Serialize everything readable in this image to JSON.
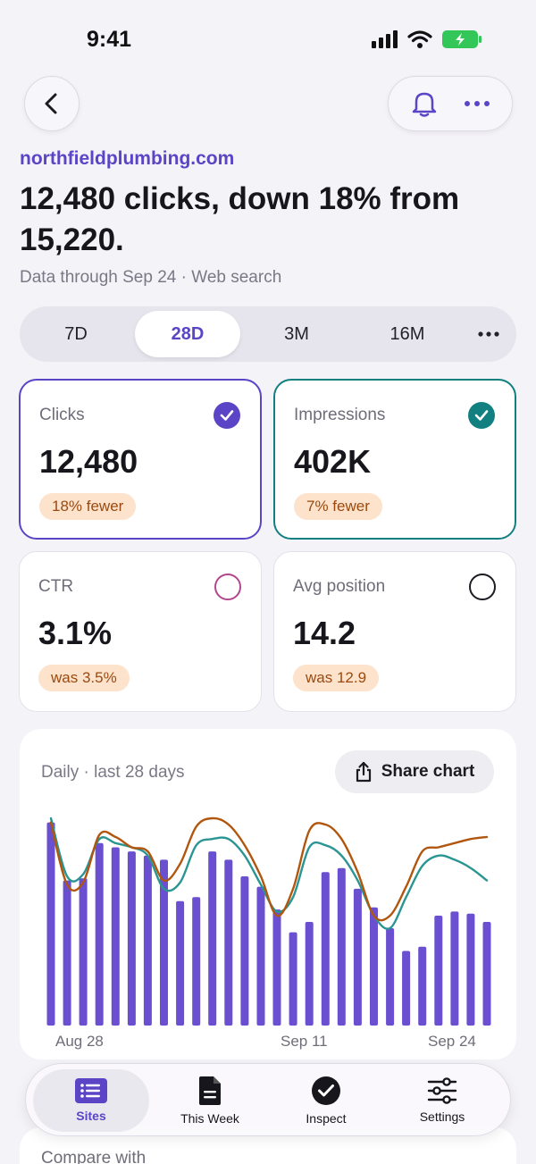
{
  "status_bar": {
    "time": "9:41"
  },
  "header": {
    "site": "northfieldplumbing.com",
    "headline": "12,480 clicks, down 18% from 15,220.",
    "subline": "Data through Sep 24 · Web search"
  },
  "ranges": {
    "items": [
      "7D",
      "28D",
      "3M",
      "16M"
    ],
    "selected": "28D"
  },
  "metrics": [
    {
      "label": "Clicks",
      "value": "12,480",
      "badge": "18% fewer",
      "selected": true,
      "color": "#5b45c6"
    },
    {
      "label": "Impressions",
      "value": "402K",
      "badge": "7% fewer",
      "selected": true,
      "color": "#127f80"
    },
    {
      "label": "CTR",
      "value": "3.1%",
      "badge": "was 3.5%",
      "selected": false,
      "color": "#b2478e"
    },
    {
      "label": "Avg position",
      "value": "14.2",
      "badge": "was 12.9",
      "selected": false,
      "color": "#1b1b22"
    }
  ],
  "chart": {
    "title": "Daily · last 28 days",
    "share_label": "Share chart",
    "x_labels": [
      "Aug 28",
      "Sep 11",
      "Sep 24"
    ]
  },
  "chart_data": {
    "type": "bar",
    "categories": [
      "Aug 28",
      "Aug 29",
      "Aug 30",
      "Aug 31",
      "Sep 1",
      "Sep 2",
      "Sep 3",
      "Sep 4",
      "Sep 5",
      "Sep 6",
      "Sep 7",
      "Sep 8",
      "Sep 9",
      "Sep 10",
      "Sep 11",
      "Sep 12",
      "Sep 13",
      "Sep 14",
      "Sep 15",
      "Sep 16",
      "Sep 17",
      "Sep 18",
      "Sep 19",
      "Sep 20",
      "Sep 21",
      "Sep 22",
      "Sep 23",
      "Sep 24"
    ],
    "series": [
      {
        "values": [
          0.98,
          0.7,
          0.71,
          0.88,
          0.86,
          0.84,
          0.82,
          0.8,
          0.6,
          0.62,
          0.84,
          0.8,
          0.72,
          0.67,
          0.56,
          0.45,
          0.5,
          0.74,
          0.76,
          0.66,
          0.57,
          0.47,
          0.36,
          0.38,
          0.53,
          0.55,
          0.54,
          0.5
        ],
        "color": "#6a4fd0"
      },
      {
        "values": [
          1.0,
          0.72,
          0.73,
          0.9,
          0.88,
          0.86,
          0.82,
          0.66,
          0.69,
          0.87,
          0.9,
          0.9,
          0.82,
          0.68,
          0.55,
          0.62,
          0.86,
          0.87,
          0.82,
          0.7,
          0.53,
          0.47,
          0.62,
          0.77,
          0.82,
          0.8,
          0.76,
          0.7
        ],
        "color": "#2a9592"
      },
      {
        "values": [
          0.98,
          0.68,
          0.69,
          0.92,
          0.91,
          0.86,
          0.84,
          0.7,
          0.78,
          0.96,
          1.0,
          0.97,
          0.87,
          0.72,
          0.53,
          0.66,
          0.94,
          0.97,
          0.9,
          0.74,
          0.53,
          0.53,
          0.67,
          0.84,
          0.86,
          0.88,
          0.9,
          0.91
        ],
        "color": "#b0560e"
      }
    ],
    "xlabels_shown": [
      "Aug 28",
      "Sep 11",
      "Sep 24"
    ]
  },
  "compare": {
    "label": "Compare with"
  },
  "nav": {
    "items": [
      {
        "label": "Sites",
        "icon": "list-icon",
        "active": true
      },
      {
        "label": "This Week",
        "icon": "document-icon",
        "active": false
      },
      {
        "label": "Inspect",
        "icon": "check-circle-icon",
        "active": false
      },
      {
        "label": "Settings",
        "icon": "sliders-icon",
        "active": false
      }
    ]
  }
}
